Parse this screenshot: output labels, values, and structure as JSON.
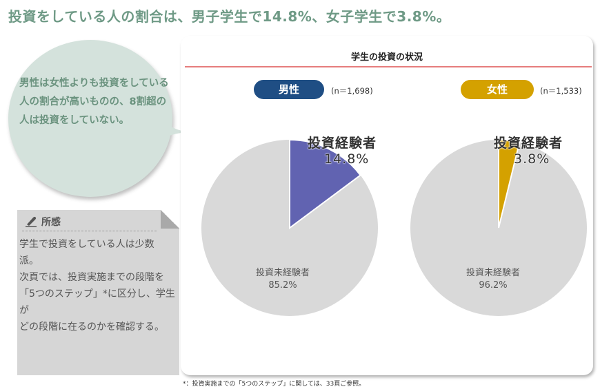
{
  "headline": "投資をしている人の割合は、男子学生で14.8%、女子学生で3.8%。",
  "bubble": {
    "text": "男性は女性よりも投資をしている人の割合が高いものの、8割超の人は投資をしていない。",
    "bg_color": "#d4e2dc",
    "text_color": "#6b937f"
  },
  "memo": {
    "icon": "pen-icon",
    "title": "所感",
    "lines": [
      "学生で投資をしている人は少数",
      "派。",
      "次頁では、投資実施までの段階を",
      "「5つのステップ」*に区分し、学生が",
      "どの段階に在るのかを確認する。"
    ]
  },
  "panel": {
    "title": "学生の投資の状況",
    "rule_color": "#e67d7d"
  },
  "groups": [
    {
      "label": "男性",
      "n": "(n＝1,698)",
      "pill_color": "#1f4e84"
    },
    {
      "label": "女性",
      "n": "(n＝1,533)",
      "pill_color": "#d4a100"
    }
  ],
  "footnote": "*：投資実施までの「5つのステップ」に関しては、33頁ご参照。",
  "chart_data": [
    {
      "type": "pie",
      "title": "男性 (n=1,698)",
      "categories": [
        "投資経験者",
        "投資未経験者"
      ],
      "values": [
        14.8,
        85.2
      ],
      "value_labels": [
        "14.8%",
        "85.2%"
      ],
      "colors": [
        "#6163b1",
        "#d9d9d9"
      ],
      "start_angle": "12 o'clock, clockwise"
    },
    {
      "type": "pie",
      "title": "女性 (n=1,533)",
      "categories": [
        "投資経験者",
        "投資未経験者"
      ],
      "values": [
        3.8,
        96.2
      ],
      "value_labels": [
        "3.8%",
        "96.2%"
      ],
      "colors": [
        "#d4a100",
        "#d9d9d9"
      ],
      "start_angle": "12 o'clock, clockwise"
    }
  ]
}
